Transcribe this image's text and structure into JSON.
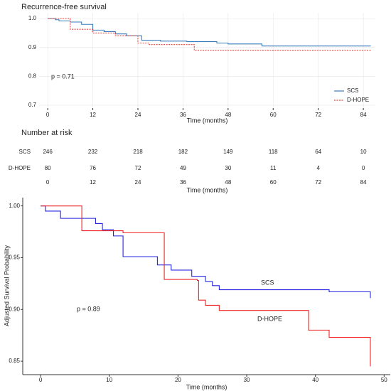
{
  "chart_data": [
    {
      "type": "line",
      "step": true,
      "title": "Recurrence-free survival",
      "xlabel": "Time (months)",
      "xlim": [
        -2.3,
        87.2
      ],
      "xticks": [
        0,
        12,
        24,
        36,
        48,
        60,
        72,
        84
      ],
      "ylim": [
        0.69,
        1.02
      ],
      "yticks": [
        {
          "value": 1,
          "label": "1.0"
        },
        0.9,
        0.8,
        0.7
      ],
      "grid": true,
      "legend": "bottom-right",
      "annotations": [
        {
          "text": "p = 0.71"
        }
      ],
      "series": [
        {
          "name": "SCS",
          "color": "#3a7dbd",
          "dash": false,
          "x": [
            0,
            2,
            3,
            6,
            9,
            12,
            15,
            18,
            21,
            25,
            30,
            37,
            45,
            48,
            57,
            86
          ],
          "values": [
            1,
            0.996,
            0.992,
            0.988,
            0.98,
            0.96,
            0.955,
            0.947,
            0.94,
            0.925,
            0.922,
            0.92,
            0.915,
            0.912,
            0.905,
            0.905
          ]
        },
        {
          "name": "D-HOPE",
          "color": "#e8433a",
          "dash": true,
          "x": [
            0,
            6,
            12,
            18,
            24,
            27,
            39,
            86
          ],
          "values": [
            1,
            0.963,
            0.95,
            0.94,
            0.915,
            0.91,
            0.89,
            0.89
          ]
        }
      ]
    },
    {
      "type": "line",
      "step": true,
      "ylabel": "Adjusted Survival Probability",
      "xlabel": "Time (months)",
      "xlim": [
        -2.6,
        50.9
      ],
      "xticks": [
        0,
        10,
        20,
        30,
        40,
        50
      ],
      "ylim": [
        0.837,
        1.008
      ],
      "yticks": [
        {
          "value": 1,
          "label": "1.00"
        },
        0.95,
        {
          "value": 0.9,
          "label": "0.90"
        },
        0.85
      ],
      "grid": false,
      "legend": "inline",
      "annotations": [
        {
          "text": "p = 0.89"
        }
      ],
      "series": [
        {
          "name": "SCS",
          "color": "#2424e0",
          "dash": false,
          "x": [
            0,
            0.7,
            2.9,
            8,
            9,
            10.6,
            12,
            17,
            19,
            22,
            24,
            25,
            26,
            39,
            42,
            48,
            48
          ],
          "values": [
            1,
            0.995,
            0.988,
            0.983,
            0.977,
            0.971,
            0.951,
            0.943,
            0.938,
            0.932,
            0.927,
            0.923,
            0.919,
            0.919,
            0.917,
            0.914,
            0.911
          ]
        },
        {
          "name": "D-HOPE",
          "color": "#f02424",
          "dash": false,
          "x": [
            0,
            6,
            12,
            17.5,
            18,
            22.8,
            23,
            24,
            26,
            39,
            42,
            48,
            48
          ],
          "values": [
            1,
            0.976,
            0.974,
            0.974,
            0.929,
            0.928,
            0.909,
            0.904,
            0.899,
            0.88,
            0.873,
            0.873,
            0.845
          ]
        }
      ]
    }
  ],
  "risk_table": {
    "title": "Number at risk",
    "xlabel": "Time (months)",
    "xticks": [
      0,
      12,
      24,
      36,
      48,
      60,
      72,
      84
    ],
    "rows": [
      {
        "name": "SCS",
        "color": "#3a7dbd",
        "values": [
          246,
          232,
          218,
          182,
          149,
          118,
          64,
          10
        ]
      },
      {
        "name": "D-HOPE",
        "color": "#e8433a",
        "values": [
          80,
          76,
          72,
          49,
          30,
          11,
          4,
          0
        ]
      }
    ]
  }
}
